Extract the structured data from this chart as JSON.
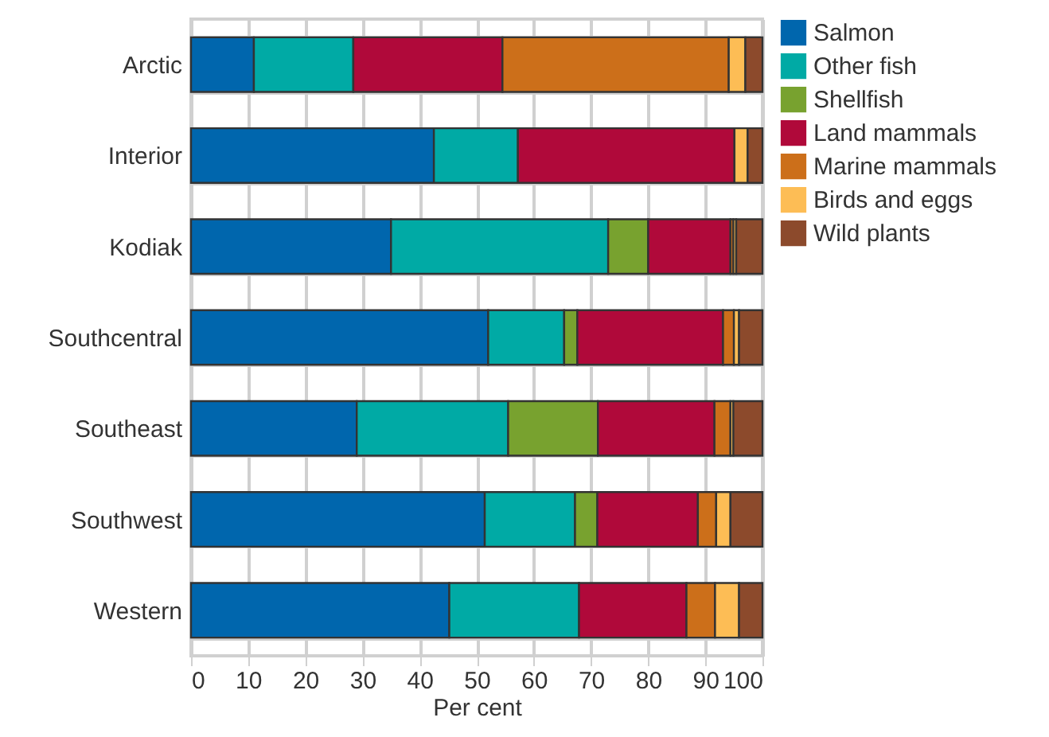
{
  "chart_data": {
    "type": "bar",
    "orientation": "horizontal",
    "stacked": true,
    "xlabel": "Per cent",
    "categories": [
      "Arctic",
      "Interior",
      "Kodiak",
      "Southcentral",
      "Southeast",
      "Southwest",
      "Western"
    ],
    "series": [
      {
        "name": "Salmon",
        "color": "#0066ad",
        "values": [
          11,
          42.5,
          35,
          52,
          29,
          51.4,
          45.2
        ]
      },
      {
        "name": "Other fish",
        "color": "#00aaa5",
        "values": [
          17.4,
          14.7,
          38,
          13.3,
          26.5,
          15.8,
          22.7
        ]
      },
      {
        "name": "Shellfish",
        "color": "#78a22f",
        "values": [
          null,
          null,
          7,
          2.3,
          15.7,
          3.9,
          null
        ]
      },
      {
        "name": "Land mammals",
        "color": "#b0093a",
        "values": [
          26.1,
          37.9,
          14.4,
          25.5,
          20.4,
          17.6,
          18.8
        ]
      },
      {
        "name": "Marine mammals",
        "color": "#cc6f1a",
        "values": [
          39.6,
          null,
          0.5,
          1.9,
          2.8,
          3.2,
          5
        ]
      },
      {
        "name": "Birds and eggs",
        "color": "#fdbd55",
        "values": [
          2.9,
          2.3,
          0.5,
          0.9,
          0.5,
          2.5,
          4.2
        ]
      },
      {
        "name": "Wild plants",
        "color": "#8c4a2c",
        "values": [
          3,
          2.6,
          4.6,
          4.1,
          5.1,
          5.6,
          4.1
        ]
      }
    ],
    "xlim": [
      0,
      100
    ],
    "xticks": [
      0,
      10,
      20,
      30,
      40,
      50,
      60,
      70,
      80,
      90,
      100
    ],
    "grid": true,
    "legend": "right"
  }
}
